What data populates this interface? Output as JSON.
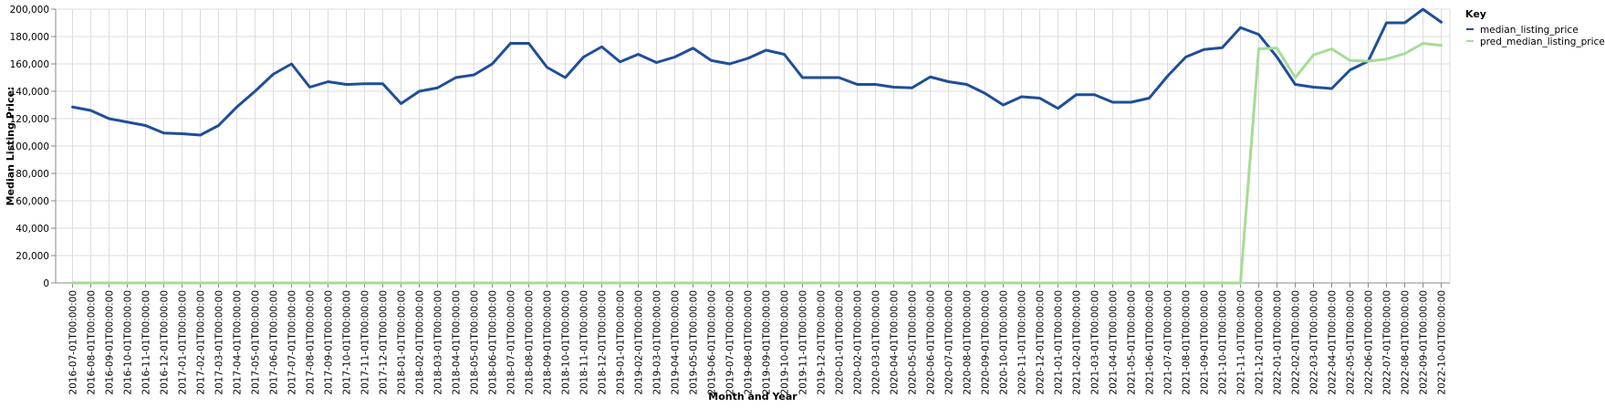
{
  "chart_data": {
    "type": "line",
    "xlabel": "Month and Year",
    "ylabel": "Median Listing Price:",
    "ylim": [
      0,
      200000
    ],
    "yticks": [
      0,
      20000,
      40000,
      60000,
      80000,
      100000,
      120000,
      140000,
      160000,
      180000,
      200000
    ],
    "ytick_labels": [
      "0",
      "20,000",
      "40,000",
      "60,000",
      "80,000",
      "100,000",
      "120,000",
      "140,000",
      "160,000",
      "180,000",
      "200,000"
    ],
    "grid": true,
    "legend_title": "Key",
    "legend_position": "top-right",
    "x": [
      "2016-07-01T00:00:00",
      "2016-08-01T00:00:00",
      "2016-09-01T00:00:00",
      "2016-10-01T00:00:00",
      "2016-11-01T00:00:00",
      "2016-12-01T00:00:00",
      "2017-01-01T00:00:00",
      "2017-02-01T00:00:00",
      "2017-03-01T00:00:00",
      "2017-04-01T00:00:00",
      "2017-05-01T00:00:00",
      "2017-06-01T00:00:00",
      "2017-07-01T00:00:00",
      "2017-08-01T00:00:00",
      "2017-09-01T00:00:00",
      "2017-10-01T00:00:00",
      "2017-11-01T00:00:00",
      "2017-12-01T00:00:00",
      "2018-01-01T00:00:00",
      "2018-02-01T00:00:00",
      "2018-03-01T00:00:00",
      "2018-04-01T00:00:00",
      "2018-05-01T00:00:00",
      "2018-06-01T00:00:00",
      "2018-07-01T00:00:00",
      "2018-08-01T00:00:00",
      "2018-09-01T00:00:00",
      "2018-10-01T00:00:00",
      "2018-11-01T00:00:00",
      "2018-12-01T00:00:00",
      "2019-01-01T00:00:00",
      "2019-02-01T00:00:00",
      "2019-03-01T00:00:00",
      "2019-04-01T00:00:00",
      "2019-05-01T00:00:00",
      "2019-06-01T00:00:00",
      "2019-07-01T00:00:00",
      "2019-08-01T00:00:00",
      "2019-09-01T00:00:00",
      "2019-10-01T00:00:00",
      "2019-11-01T00:00:00",
      "2019-12-01T00:00:00",
      "2020-01-01T00:00:00",
      "2020-02-01T00:00:00",
      "2020-03-01T00:00:00",
      "2020-04-01T00:00:00",
      "2020-05-01T00:00:00",
      "2020-06-01T00:00:00",
      "2020-07-01T00:00:00",
      "2020-08-01T00:00:00",
      "2020-09-01T00:00:00",
      "2020-10-01T00:00:00",
      "2020-11-01T00:00:00",
      "2020-12-01T00:00:00",
      "2021-01-01T00:00:00",
      "2021-02-01T00:00:00",
      "2021-03-01T00:00:00",
      "2021-04-01T00:00:00",
      "2021-05-01T00:00:00",
      "2021-06-01T00:00:00",
      "2021-07-01T00:00:00",
      "2021-08-01T00:00:00",
      "2021-09-01T00:00:00",
      "2021-10-01T00:00:00",
      "2021-11-01T00:00:00",
      "2021-12-01T00:00:00",
      "2022-01-01T00:00:00",
      "2022-02-01T00:00:00",
      "2022-03-01T00:00:00",
      "2022-04-01T00:00:00",
      "2022-05-01T00:00:00",
      "2022-06-01T00:00:00",
      "2022-07-01T00:00:00",
      "2022-08-01T00:00:00",
      "2022-09-01T00:00:00",
      "2022-10-01T00:00:00"
    ],
    "series": [
      {
        "name": "median_listing_price",
        "color": "#1f4e9a",
        "values": [
          128500,
          126000,
          120000,
          117500,
          115000,
          109500,
          109000,
          108000,
          115000,
          128500,
          140000,
          152500,
          160000,
          143000,
          147000,
          145000,
          145500,
          145500,
          131000,
          140000,
          142500,
          150000,
          152000,
          160000,
          175000,
          175000,
          157500,
          150000,
          165000,
          172500,
          161500,
          167000,
          161000,
          165000,
          171500,
          162500,
          160000,
          164000,
          170000,
          167000,
          150000,
          150000,
          150000,
          145000,
          145000,
          143000,
          142500,
          150500,
          147000,
          145000,
          138500,
          130000,
          136000,
          135000,
          127500,
          137500,
          137500,
          132000,
          132000,
          135000,
          151000,
          165000,
          170500,
          171800,
          186500,
          181500,
          165000,
          145000,
          143000,
          142000,
          155500,
          162000,
          190000,
          190000,
          199900,
          190500
        ]
      },
      {
        "name": "pred_median_listing_price",
        "color": "#a6dc96",
        "values": [
          0,
          0,
          0,
          0,
          0,
          0,
          0,
          0,
          0,
          0,
          0,
          0,
          0,
          0,
          0,
          0,
          0,
          0,
          0,
          0,
          0,
          0,
          0,
          0,
          0,
          0,
          0,
          0,
          0,
          0,
          0,
          0,
          0,
          0,
          0,
          0,
          0,
          0,
          0,
          0,
          0,
          0,
          0,
          0,
          0,
          0,
          0,
          0,
          0,
          0,
          0,
          0,
          0,
          0,
          0,
          0,
          0,
          0,
          0,
          0,
          0,
          0,
          0,
          0,
          0,
          171000,
          171500,
          150000,
          166500,
          171000,
          162500,
          162000,
          163500,
          167500,
          175000,
          173500
        ]
      }
    ]
  }
}
